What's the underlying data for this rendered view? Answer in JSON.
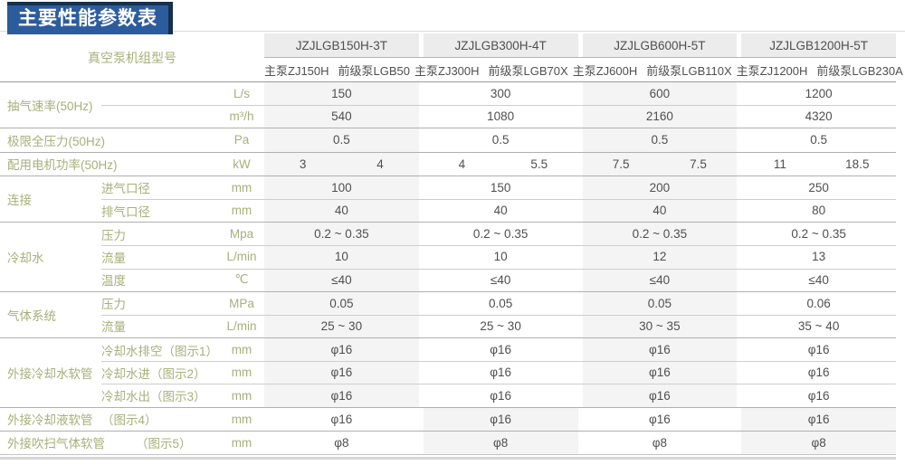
{
  "title": "主要性能参数表",
  "colors": {
    "title_bg": "#2d5c9e",
    "title_edge": "#16304d",
    "label_green": "#a6b07a",
    "value_gray": "#4f4f4f",
    "shaded_cell": "#f4f4f5",
    "header_cell_bg": "#ececec"
  },
  "table": {
    "model_header_label": "真空泵机组型号",
    "models": [
      {
        "name": "JZJLGB150H-3T",
        "main_pump": "主泵ZJ150H",
        "backing_pump": "前级泵LGB50"
      },
      {
        "name": "JZJLGB300H-4T",
        "main_pump": "主泵ZJ300H",
        "backing_pump": "前级泵LGB70X"
      },
      {
        "name": "JZJLGB600H-5T",
        "main_pump": "主泵ZJ600H",
        "backing_pump": "前级泵LGB110X"
      },
      {
        "name": "JZJLGB1200H-5T",
        "main_pump": "主泵ZJ1200H",
        "backing_pump": "前级泵LGB230A"
      }
    ],
    "sections": [
      {
        "group": "抽气速率(50Hz)",
        "rows": [
          {
            "attr": "",
            "unit": "L/s",
            "values": [
              "150",
              "300",
              "600",
              "1200"
            ]
          },
          {
            "attr": "",
            "unit": "m³/h",
            "values": [
              "540",
              "1080",
              "2160",
              "4320"
            ]
          }
        ]
      },
      {
        "group": "极限全压力(50Hz)",
        "rows": [
          {
            "attr": "",
            "unit": "Pa",
            "values": [
              "0.5",
              "0.5",
              "0.5",
              "0.5"
            ]
          }
        ]
      },
      {
        "group": "配用电机功率(50Hz)",
        "rows": [
          {
            "attr": "",
            "unit": "kW",
            "values": [
              [
                "3",
                "4"
              ],
              [
                "4",
                "5.5"
              ],
              [
                "7.5",
                "7.5"
              ],
              [
                "11",
                "18.5"
              ]
            ]
          }
        ]
      },
      {
        "group": "连接",
        "rows": [
          {
            "attr": "进气口径",
            "unit": "mm",
            "values": [
              "100",
              "150",
              "200",
              "250"
            ]
          },
          {
            "attr": "排气口径",
            "unit": "mm",
            "values": [
              "40",
              "40",
              "40",
              "80"
            ]
          }
        ]
      },
      {
        "group": "冷却水",
        "rows": [
          {
            "attr": "压力",
            "unit": "Mpa",
            "values": [
              "0.2 ~ 0.35",
              "0.2 ~ 0.35",
              "0.2 ~ 0.35",
              "0.2 ~ 0.35"
            ]
          },
          {
            "attr": "流量",
            "unit": "L/min",
            "values": [
              "10",
              "10",
              "12",
              "13"
            ]
          },
          {
            "attr": "温度",
            "unit": "℃",
            "values": [
              "≤40",
              "≤40",
              "≤40",
              "≤40"
            ]
          }
        ]
      },
      {
        "group": "气体系统",
        "rows": [
          {
            "attr": "压力",
            "unit": "MPa",
            "values": [
              "0.05",
              "0.05",
              "0.05",
              "0.06"
            ]
          },
          {
            "attr": "流量",
            "unit": "L/min",
            "values": [
              "25 ~ 30",
              "25 ~ 30",
              "30 ~ 35",
              "35 ~ 40"
            ]
          }
        ]
      },
      {
        "group": "外接冷却水软管",
        "rows": [
          {
            "attr": "冷却水排空（图示1）",
            "unit": "mm",
            "values": [
              "φ16",
              "φ16",
              "φ16",
              "φ16"
            ]
          },
          {
            "attr": "冷却水进（图示2）",
            "unit": "mm",
            "values": [
              "φ16",
              "φ16",
              "φ16",
              "φ16"
            ]
          },
          {
            "attr": "冷却水出（图示3）",
            "unit": "mm",
            "values": [
              "φ16",
              "φ16",
              "φ16",
              "φ16"
            ]
          }
        ]
      },
      {
        "group": "外接冷却液软管",
        "rows": [
          {
            "attr": "（图示4）",
            "unit": "mm",
            "values": [
              "φ16",
              "φ16",
              "φ16",
              "φ16"
            ]
          }
        ]
      },
      {
        "group": "外接吹扫气体软管",
        "rows": [
          {
            "attr": "（图示5）",
            "unit": "mm",
            "values": [
              "φ8",
              "φ8",
              "φ8",
              "φ8"
            ]
          }
        ]
      }
    ]
  }
}
